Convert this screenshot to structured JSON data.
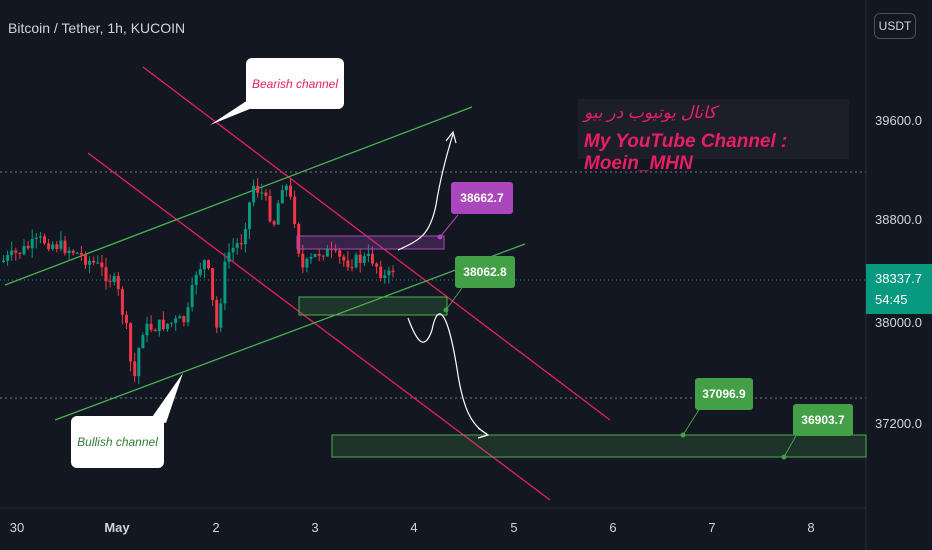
{
  "header": {
    "title": "Bitcoin / Tether, 1h, KUCOIN",
    "currency": "USDT"
  },
  "price_axis": {
    "labels": [
      "39600.0",
      "38800.0",
      "38000.0",
      "37200.0"
    ],
    "current_price": "38337.7",
    "countdown": "54:45"
  },
  "time_axis": {
    "labels": [
      "30",
      "May",
      "2",
      "3",
      "4",
      "5",
      "6",
      "7",
      "8"
    ]
  },
  "annotations": {
    "bearish_label": "Bearish channel",
    "bullish_label": "Bullish channel",
    "promo_line1": "کانال یوتیوب در بیو",
    "promo_line2": "My YouTube Channel : Moein_MHN",
    "tag_upper": "38662.7",
    "tag_mid": "38062.8",
    "tag_low1": "37096.9",
    "tag_low2": "36903.7"
  },
  "colors": {
    "background": "#131722",
    "bull": "#089981",
    "bear": "#f23645",
    "bearish_channel": "#e91e63",
    "bullish_channel": "#4caf50",
    "tag_purple": "#ab47bc",
    "tag_green": "#43a047"
  }
}
